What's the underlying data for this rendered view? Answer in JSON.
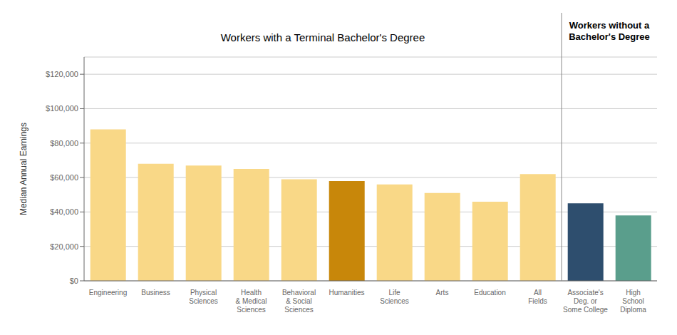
{
  "chart_data": {
    "type": "bar",
    "title": "Workers with a Terminal Bachelor's Degree",
    "annotations": [
      "Workers without a\nBachelor's Degree"
    ],
    "categories": [
      "Engineering",
      "Business",
      "Physical\nSciences",
      "Health\n& Medical\nSciences",
      "Behavioral\n& Social\nSciences",
      "Humanities",
      "Life\nSciences",
      "Arts",
      "Education",
      "All\nFields",
      "Associate's\nDeg. or\nSome College",
      "High\nSchool\nDiploma"
    ],
    "values": [
      88000,
      68000,
      67000,
      65000,
      59000,
      58000,
      56000,
      51000,
      46000,
      62000,
      45000,
      38000
    ],
    "colors": [
      "#F9D887",
      "#F9D887",
      "#F9D887",
      "#F9D887",
      "#F9D887",
      "#C8870A",
      "#F9D887",
      "#F9D887",
      "#F9D887",
      "#F9D887",
      "#2E4E6E",
      "#5A9E8C"
    ],
    "ylabel": "Median Annual Earnings",
    "ylim": [
      0,
      130000
    ],
    "yticks": [
      {
        "value": 0,
        "label": "$0"
      },
      {
        "value": 20000,
        "label": "$20,000"
      },
      {
        "value": 40000,
        "label": "$40,000"
      },
      {
        "value": 60000,
        "label": "$60,000"
      },
      {
        "value": 80000,
        "label": "$80,000"
      },
      {
        "value": 100000,
        "label": "$100,000"
      },
      {
        "value": 120000,
        "label": "$120,000"
      }
    ],
    "grid": true
  }
}
